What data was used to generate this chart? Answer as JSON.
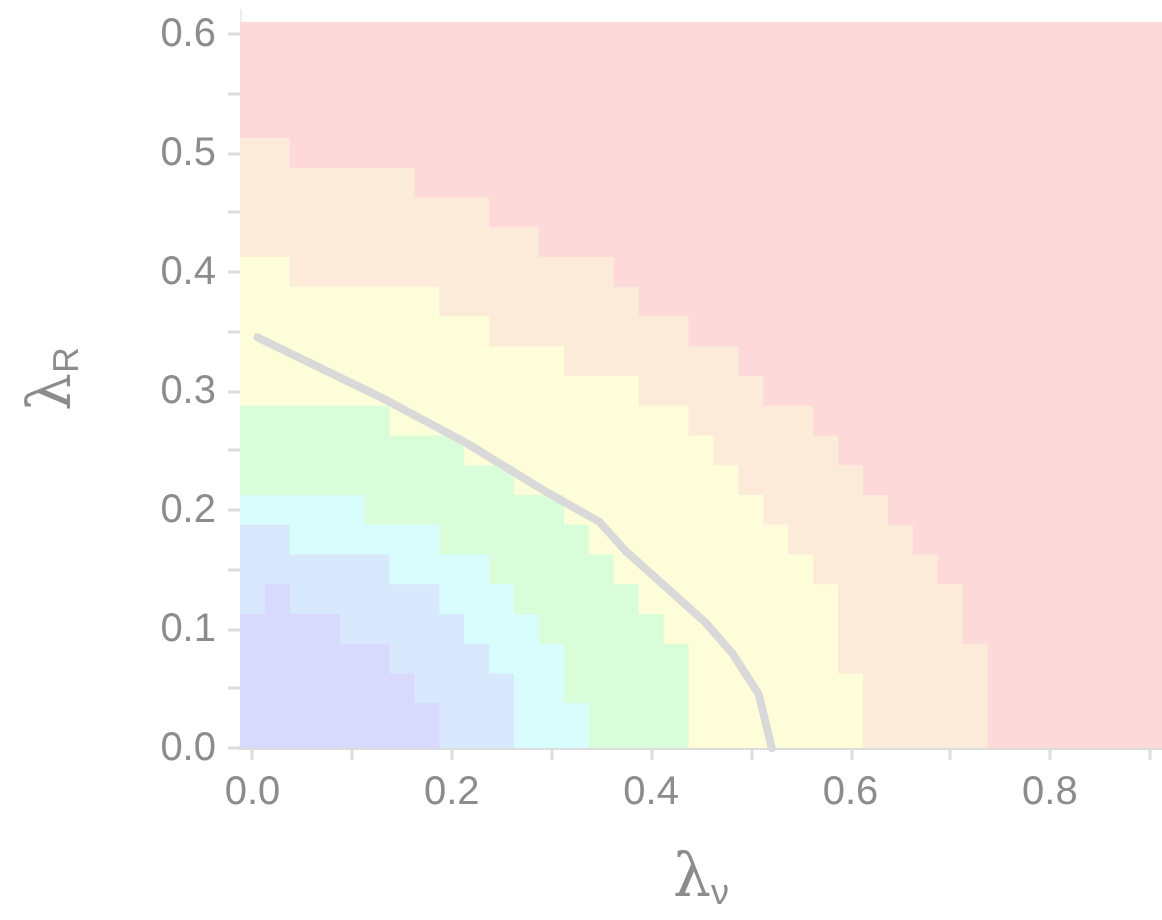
{
  "chart_data": {
    "type": "area",
    "xlabel": "λ$_{ν}$",
    "ylabel": "λ$_{R}$",
    "xlim": [
      -0.0125,
      0.9125
    ],
    "ylim": [
      0,
      0.62
    ],
    "xticks": [
      {
        "value": 0,
        "label": "0.0"
      },
      {
        "value": 0.1,
        "label": null
      },
      {
        "value": 0.2,
        "label": "0.2"
      },
      {
        "value": 0.3,
        "label": null
      },
      {
        "value": 0.4,
        "label": "0.4"
      },
      {
        "value": 0.5,
        "label": null
      },
      {
        "value": 0.6,
        "label": "0.6"
      },
      {
        "value": 0.7,
        "label": null
      },
      {
        "value": 0.8,
        "label": "0.8"
      },
      {
        "value": 0.9,
        "label": null
      }
    ],
    "yticks": [
      {
        "value": 0,
        "label": "0.0"
      },
      {
        "value": 0.05,
        "label": null
      },
      {
        "value": 0.1,
        "label": "0.1"
      },
      {
        "value": 0.15,
        "label": null
      },
      {
        "value": 0.2,
        "label": "0.2"
      },
      {
        "value": 0.25,
        "label": null
      },
      {
        "value": 0.3,
        "label": "0.3"
      },
      {
        "value": 0.35,
        "label": null
      },
      {
        "value": 0.4,
        "label": "0.4"
      },
      {
        "value": 0.45,
        "label": null
      },
      {
        "value": 0.5,
        "label": "0.5"
      },
      {
        "value": 0.55,
        "label": null
      },
      {
        "value": 0.6,
        "label": "0.6"
      }
    ],
    "marker": "none",
    "bands": [
      {
        "axis": "y",
        "from": 0,
        "to": 0.61,
        "color": "#fdd9d9"
      }
    ],
    "series": [
      {
        "color": "#fdebd9",
        "x": [
          -0.0125,
          0.0375,
          0.0375,
          0.1625,
          0.1625,
          0.2375,
          0.2375,
          0.2875,
          0.2875,
          0.3625,
          0.3625,
          0.3875,
          0.3875,
          0.4375,
          0.4375,
          0.4875,
          0.4875,
          0.5125,
          0.5125,
          0.5625,
          0.5625,
          0.5875,
          0.5875,
          0.6125,
          0.6125,
          0.6375,
          0.6375,
          0.6625,
          0.6625,
          0.6875,
          0.6875,
          0.7125,
          0.7125,
          0.7375
        ],
        "values": [
          0.5125,
          0.5125,
          0.4875,
          0.4875,
          0.4625,
          0.4625,
          0.4375,
          0.4375,
          0.4125,
          0.4125,
          0.3875,
          0.3875,
          0.3625,
          0.3625,
          0.3375,
          0.3375,
          0.3125,
          0.3125,
          0.2875,
          0.2875,
          0.2625,
          0.2625,
          0.2375,
          0.2375,
          0.2125,
          0.2125,
          0.1875,
          0.1875,
          0.1625,
          0.1625,
          0.1375,
          0.1375,
          0.0875,
          0.0875
        ]
      },
      {
        "color": "#fdfdd9",
        "x": [
          -0.0125,
          0.0375,
          0.0375,
          0.1875,
          0.1875,
          0.2375,
          0.2375,
          0.3125,
          0.3125,
          0.3875,
          0.3875,
          0.4375,
          0.4375,
          0.4625,
          0.4625,
          0.4875,
          0.4875,
          0.5125,
          0.5125,
          0.5375,
          0.5375,
          0.5625,
          0.5625,
          0.5875,
          0.5875,
          0.6125
        ],
        "values": [
          0.4125,
          0.4125,
          0.3875,
          0.3875,
          0.3625,
          0.3625,
          0.3375,
          0.3375,
          0.3125,
          0.3125,
          0.2875,
          0.2875,
          0.2625,
          0.2625,
          0.2375,
          0.2375,
          0.2125,
          0.2125,
          0.1875,
          0.1875,
          0.1625,
          0.1625,
          0.1375,
          0.1375,
          0.0625,
          0.0625
        ]
      },
      {
        "color": "#d9fdd9",
        "x": [
          -0.0125,
          0.1375,
          0.1375,
          0.2125,
          0.2125,
          0.2625,
          0.2625,
          0.3125,
          0.3125,
          0.3375,
          0.3375,
          0.3625,
          0.3625,
          0.3875,
          0.3875,
          0.4125,
          0.4125,
          0.4375
        ],
        "values": [
          0.2875,
          0.2875,
          0.2625,
          0.2625,
          0.2375,
          0.2375,
          0.2125,
          0.2125,
          0.1875,
          0.1875,
          0.1625,
          0.1625,
          0.1375,
          0.1375,
          0.1125,
          0.1125,
          0.0875,
          0.0875
        ]
      },
      {
        "color": "#d9fdfd",
        "x": [
          -0.0125,
          0.1125,
          0.1125,
          0.1875,
          0.1875,
          0.2375,
          0.2375,
          0.2625,
          0.2625,
          0.2875,
          0.2875,
          0.3125,
          0.3125,
          0.3375
        ],
        "values": [
          0.2125,
          0.2125,
          0.1875,
          0.1875,
          0.1625,
          0.1625,
          0.1375,
          0.1375,
          0.1125,
          0.1125,
          0.0875,
          0.0875,
          0.0375,
          0.0375
        ]
      },
      {
        "color": "#d9e9fd",
        "x": [
          -0.0125,
          0.0375,
          0.0375,
          0.1375,
          0.1375,
          0.1875,
          0.1875,
          0.2125,
          0.2125,
          0.2375,
          0.2375,
          0.2625
        ],
        "values": [
          0.1875,
          0.1875,
          0.1625,
          0.1625,
          0.1375,
          0.1375,
          0.1125,
          0.1125,
          0.0875,
          0.0875,
          0.0625,
          0.0625
        ]
      },
      {
        "color": "#d9d9fd",
        "x": [
          -0.0125,
          0.0125,
          0.0125,
          0.0375,
          0.0375,
          0.0875,
          0.0875,
          0.1375,
          0.1375,
          0.1625,
          0.1625,
          0.1875
        ],
        "values": [
          0.1125,
          0.1125,
          0.1375,
          0.1375,
          0.1125,
          0.1125,
          0.0875,
          0.0875,
          0.0625,
          0.0625,
          0.0375,
          0.0375
        ]
      },
      {
        "type": "line",
        "color": "#d9d9d9",
        "line_style": "solid",
        "x": [
          0.005,
          0.135,
          0.215,
          0.295,
          0.348,
          0.375,
          0.455,
          0.481,
          0.508,
          0.521
        ],
        "values": [
          0.345,
          0.292,
          0.256,
          0.215,
          0.19,
          0.165,
          0.105,
          0.08,
          0.045,
          0
        ]
      }
    ]
  }
}
